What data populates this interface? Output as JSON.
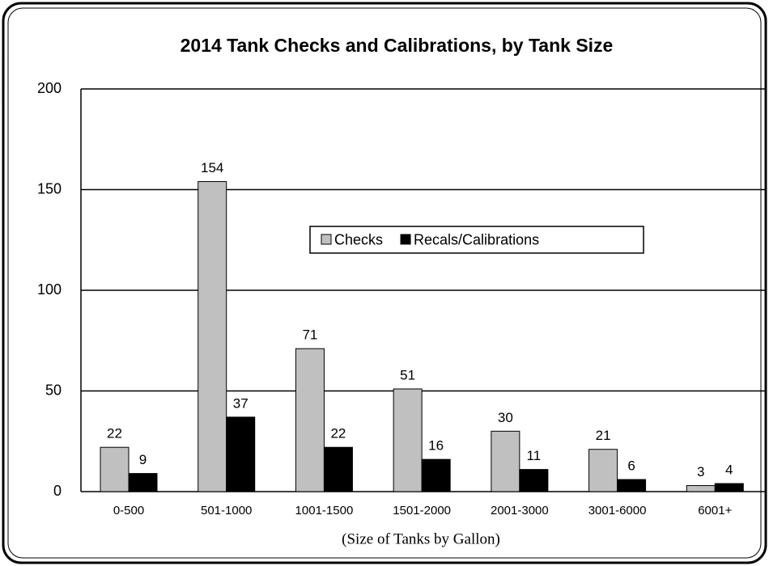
{
  "chart_data": {
    "type": "bar",
    "title": "2014 Tank Checks and Calibrations, by Tank Size",
    "x_label": "(Size of Tanks by Gallon)",
    "categories": [
      "0-500",
      "501-1000",
      "1001-1500",
      "1501-2000",
      "2001-3000",
      "3001-6000",
      "6001+"
    ],
    "series": [
      {
        "name": "Checks",
        "color": "#c0c0c0",
        "values": [
          22,
          154,
          71,
          51,
          30,
          21,
          3
        ]
      },
      {
        "name": "Recals/Calibrations",
        "color": "#000000",
        "values": [
          9,
          37,
          22,
          16,
          11,
          6,
          4
        ]
      }
    ],
    "ylim": [
      0,
      200
    ],
    "yticks": [
      0,
      50,
      100,
      150,
      200
    ],
    "grid": true,
    "legend": "center"
  }
}
